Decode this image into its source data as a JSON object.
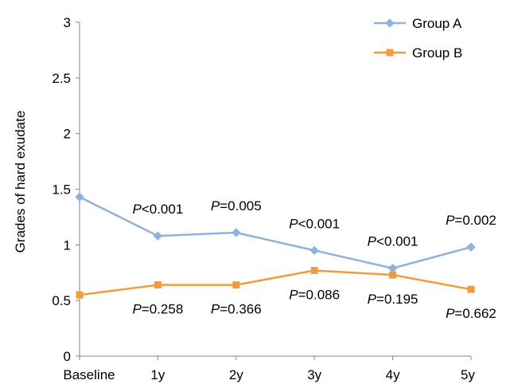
{
  "chart_data": {
    "type": "line",
    "title": "",
    "xlabel": "",
    "ylabel": "Grades of hard exudate",
    "categories": [
      "Baseline",
      "1y",
      "2y",
      "3y",
      "4y",
      "5y"
    ],
    "ylim": [
      0,
      3
    ],
    "yticks": [
      0,
      0.5,
      1,
      1.5,
      2,
      2.5,
      3
    ],
    "ytick_labels": [
      "0",
      "0.5",
      "1",
      "1.5",
      "2",
      "2.5",
      "3"
    ],
    "grid": false,
    "legend_position": "top-right",
    "series": [
      {
        "name": "Group A",
        "color": "#8fb3dd",
        "marker": "diamond",
        "values": [
          1.43,
          1.08,
          1.11,
          0.95,
          0.79,
          0.98
        ],
        "annotations": [
          {
            "index": 1,
            "prefix": "P",
            "suffix": "<0.001"
          },
          {
            "index": 2,
            "prefix": "P",
            "suffix": "=0.005"
          },
          {
            "index": 3,
            "prefix": "P",
            "suffix": "<0.001"
          },
          {
            "index": 4,
            "prefix": "P",
            "suffix": "<0.001"
          },
          {
            "index": 5,
            "prefix": "P",
            "suffix": "=0.002"
          }
        ]
      },
      {
        "name": "Group B",
        "color": "#f29b3d",
        "marker": "square",
        "values": [
          0.55,
          0.64,
          0.64,
          0.77,
          0.73,
          0.6
        ],
        "annotations": [
          {
            "index": 1,
            "prefix": "P",
            "suffix": "=0.258"
          },
          {
            "index": 2,
            "prefix": "P",
            "suffix": "=0.366"
          },
          {
            "index": 3,
            "prefix": "P",
            "suffix": "=0.086"
          },
          {
            "index": 4,
            "prefix": "P",
            "suffix": "=0.195"
          },
          {
            "index": 5,
            "prefix": "P",
            "suffix": "=0.662"
          }
        ]
      }
    ]
  }
}
